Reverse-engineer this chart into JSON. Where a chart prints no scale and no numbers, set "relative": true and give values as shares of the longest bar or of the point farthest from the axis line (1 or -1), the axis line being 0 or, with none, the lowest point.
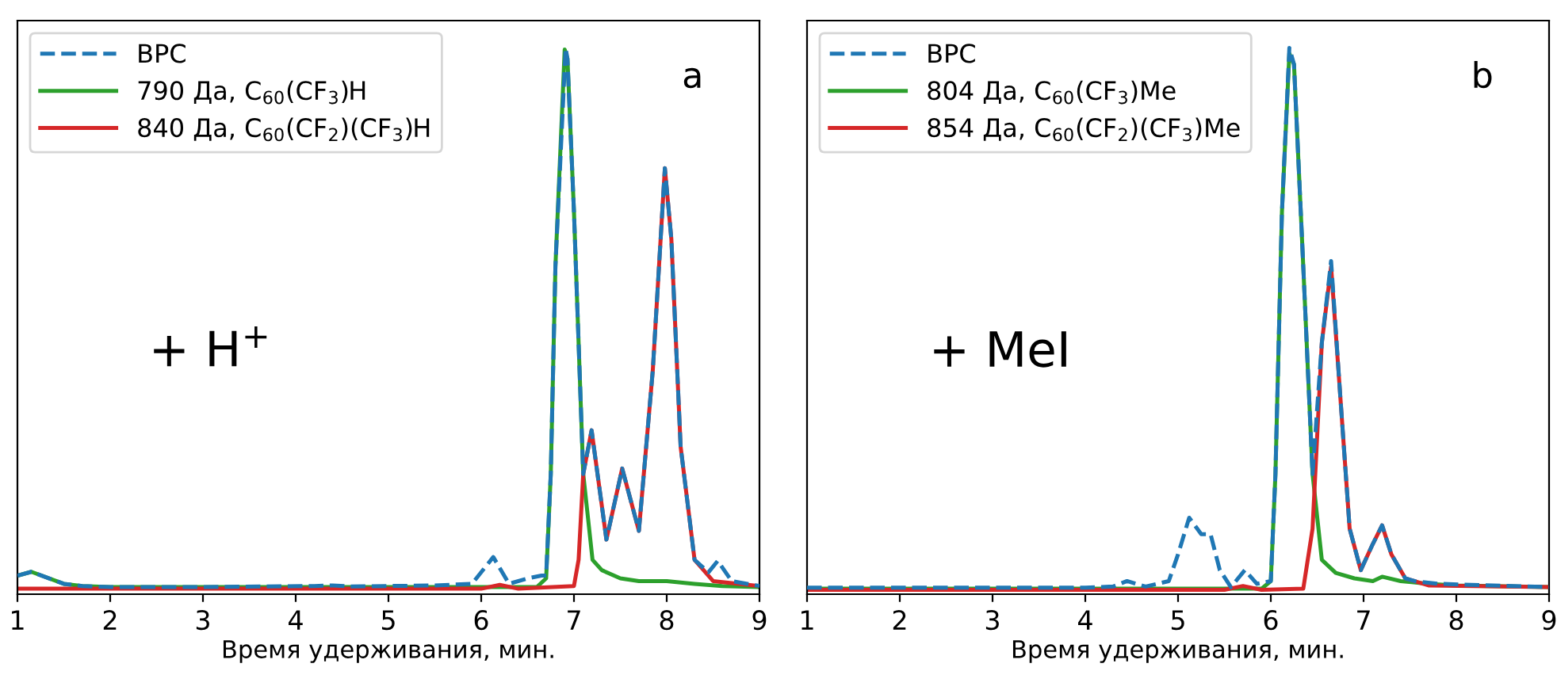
{
  "chart_data": [
    {
      "type": "line",
      "relative": true,
      "xlabel": "Время удерживания, мин.",
      "xlim": [
        1,
        9
      ],
      "xticks": [
        1,
        2,
        3,
        4,
        5,
        6,
        7,
        8,
        9
      ],
      "tick_labels": "x",
      "legend": "top left",
      "grid": false,
      "marker": "none",
      "annotations": [
        "a",
        "+ H$^{+}$"
      ],
      "series": [
        {
          "name": "BPC",
          "color": "#1f77b4",
          "line_style": "dashed",
          "x": [
            1.0,
            1.15,
            1.5,
            1.7,
            2.0,
            3.0,
            4.2,
            4.4,
            4.6,
            5.0,
            5.5,
            5.9,
            6.13,
            6.3,
            6.5,
            6.65,
            6.7,
            6.75,
            6.8,
            6.91,
            6.93,
            7.0,
            7.1,
            7.19,
            7.35,
            7.52,
            7.7,
            7.85,
            7.98,
            8.05,
            8.15,
            8.3,
            8.45,
            8.55,
            8.7,
            9.0
          ],
          "values": [
            0.034,
            0.041,
            0.019,
            0.015,
            0.013,
            0.013,
            0.015,
            0.016,
            0.014,
            0.015,
            0.016,
            0.019,
            0.068,
            0.019,
            0.029,
            0.034,
            0.034,
            0.22,
            0.6,
            1.0,
            0.98,
            0.7,
            0.22,
            0.3,
            0.1,
            0.23,
            0.116,
            0.41,
            0.78,
            0.65,
            0.27,
            0.063,
            0.04,
            0.061,
            0.024,
            0.015
          ]
        },
        {
          "name": "790 Да, C$_{60}$(CF$_{3}$)H",
          "color": "#2ca02c",
          "line_style": "solid",
          "x": [
            1.0,
            1.15,
            1.5,
            1.7,
            2.0,
            4.0,
            6.6,
            6.7,
            6.75,
            6.8,
            6.9,
            6.93,
            7.0,
            7.1,
            7.2,
            7.3,
            7.5,
            7.7,
            8.0,
            8.3,
            8.6,
            9.0
          ],
          "values": [
            0.034,
            0.041,
            0.019,
            0.015,
            0.013,
            0.013,
            0.013,
            0.029,
            0.22,
            0.6,
            0.997,
            0.98,
            0.7,
            0.22,
            0.063,
            0.044,
            0.029,
            0.024,
            0.024,
            0.019,
            0.015,
            0.013
          ]
        },
        {
          "name": "840 Да, C$_{60}$(CF$_{2}$)(CF$_{3}$)H",
          "color": "#d62728",
          "line_style": "solid",
          "x": [
            1.0,
            3.0,
            6.0,
            6.2,
            6.4,
            7.0,
            7.05,
            7.1,
            7.19,
            7.35,
            7.52,
            7.7,
            7.85,
            7.98,
            8.05,
            8.15,
            8.3,
            8.5,
            9.0
          ],
          "values": [
            0.01,
            0.01,
            0.01,
            0.017,
            0.01,
            0.015,
            0.063,
            0.22,
            0.3,
            0.1,
            0.23,
            0.116,
            0.41,
            0.78,
            0.65,
            0.27,
            0.063,
            0.024,
            0.015
          ]
        }
      ]
    },
    {
      "type": "line",
      "relative": true,
      "xlabel": "Время удерживания, мин.",
      "xlim": [
        1,
        9
      ],
      "xticks": [
        1,
        2,
        3,
        4,
        5,
        6,
        7,
        8,
        9
      ],
      "tick_labels": "x",
      "legend": "top left",
      "grid": false,
      "marker": "none",
      "annotations": [
        "b",
        "+ MeI"
      ],
      "series": [
        {
          "name": "BPC",
          "color": "#1f77b4",
          "line_style": "dashed",
          "x": [
            1.0,
            2.0,
            3.0,
            4.0,
            4.3,
            4.45,
            4.65,
            4.9,
            5.0,
            5.12,
            5.25,
            5.35,
            5.45,
            5.57,
            5.72,
            5.85,
            6.0,
            6.05,
            6.12,
            6.2,
            6.25,
            6.35,
            6.45,
            6.55,
            6.65,
            6.75,
            6.85,
            6.97,
            7.1,
            7.2,
            7.3,
            7.45,
            7.55,
            7.8,
            9.0
          ],
          "values": [
            0.012,
            0.012,
            0.012,
            0.012,
            0.014,
            0.024,
            0.014,
            0.024,
            0.073,
            0.14,
            0.11,
            0.11,
            0.044,
            0.013,
            0.044,
            0.019,
            0.024,
            0.22,
            0.7,
            1.0,
            0.97,
            0.6,
            0.22,
            0.46,
            0.61,
            0.36,
            0.12,
            0.044,
            0.092,
            0.126,
            0.073,
            0.029,
            0.024,
            0.019,
            0.013
          ]
        },
        {
          "name": "804 Да, C$_{60}$(CF$_{3}$)Me",
          "color": "#2ca02c",
          "line_style": "solid",
          "x": [
            1.0,
            3.0,
            5.9,
            6.0,
            6.05,
            6.12,
            6.2,
            6.25,
            6.35,
            6.45,
            6.55,
            6.7,
            6.9,
            7.1,
            7.2,
            7.4,
            7.7,
            8.0,
            9.0
          ],
          "values": [
            0.01,
            0.01,
            0.01,
            0.024,
            0.22,
            0.7,
            0.99,
            0.97,
            0.6,
            0.22,
            0.063,
            0.039,
            0.029,
            0.024,
            0.032,
            0.024,
            0.019,
            0.016,
            0.013
          ]
        },
        {
          "name": "854 Да, C$_{60}$(CF$_{2}$)(CF$_{3}$)Me",
          "color": "#d62728",
          "line_style": "solid",
          "x": [
            1.0,
            3.0,
            5.5,
            5.7,
            5.9,
            6.35,
            6.45,
            6.55,
            6.65,
            6.75,
            6.85,
            6.97,
            7.1,
            7.2,
            7.3,
            7.45,
            7.7,
            9.0
          ],
          "values": [
            0.008,
            0.008,
            0.008,
            0.015,
            0.008,
            0.01,
            0.12,
            0.46,
            0.6,
            0.36,
            0.12,
            0.044,
            0.092,
            0.126,
            0.073,
            0.029,
            0.016,
            0.013
          ]
        }
      ]
    }
  ]
}
